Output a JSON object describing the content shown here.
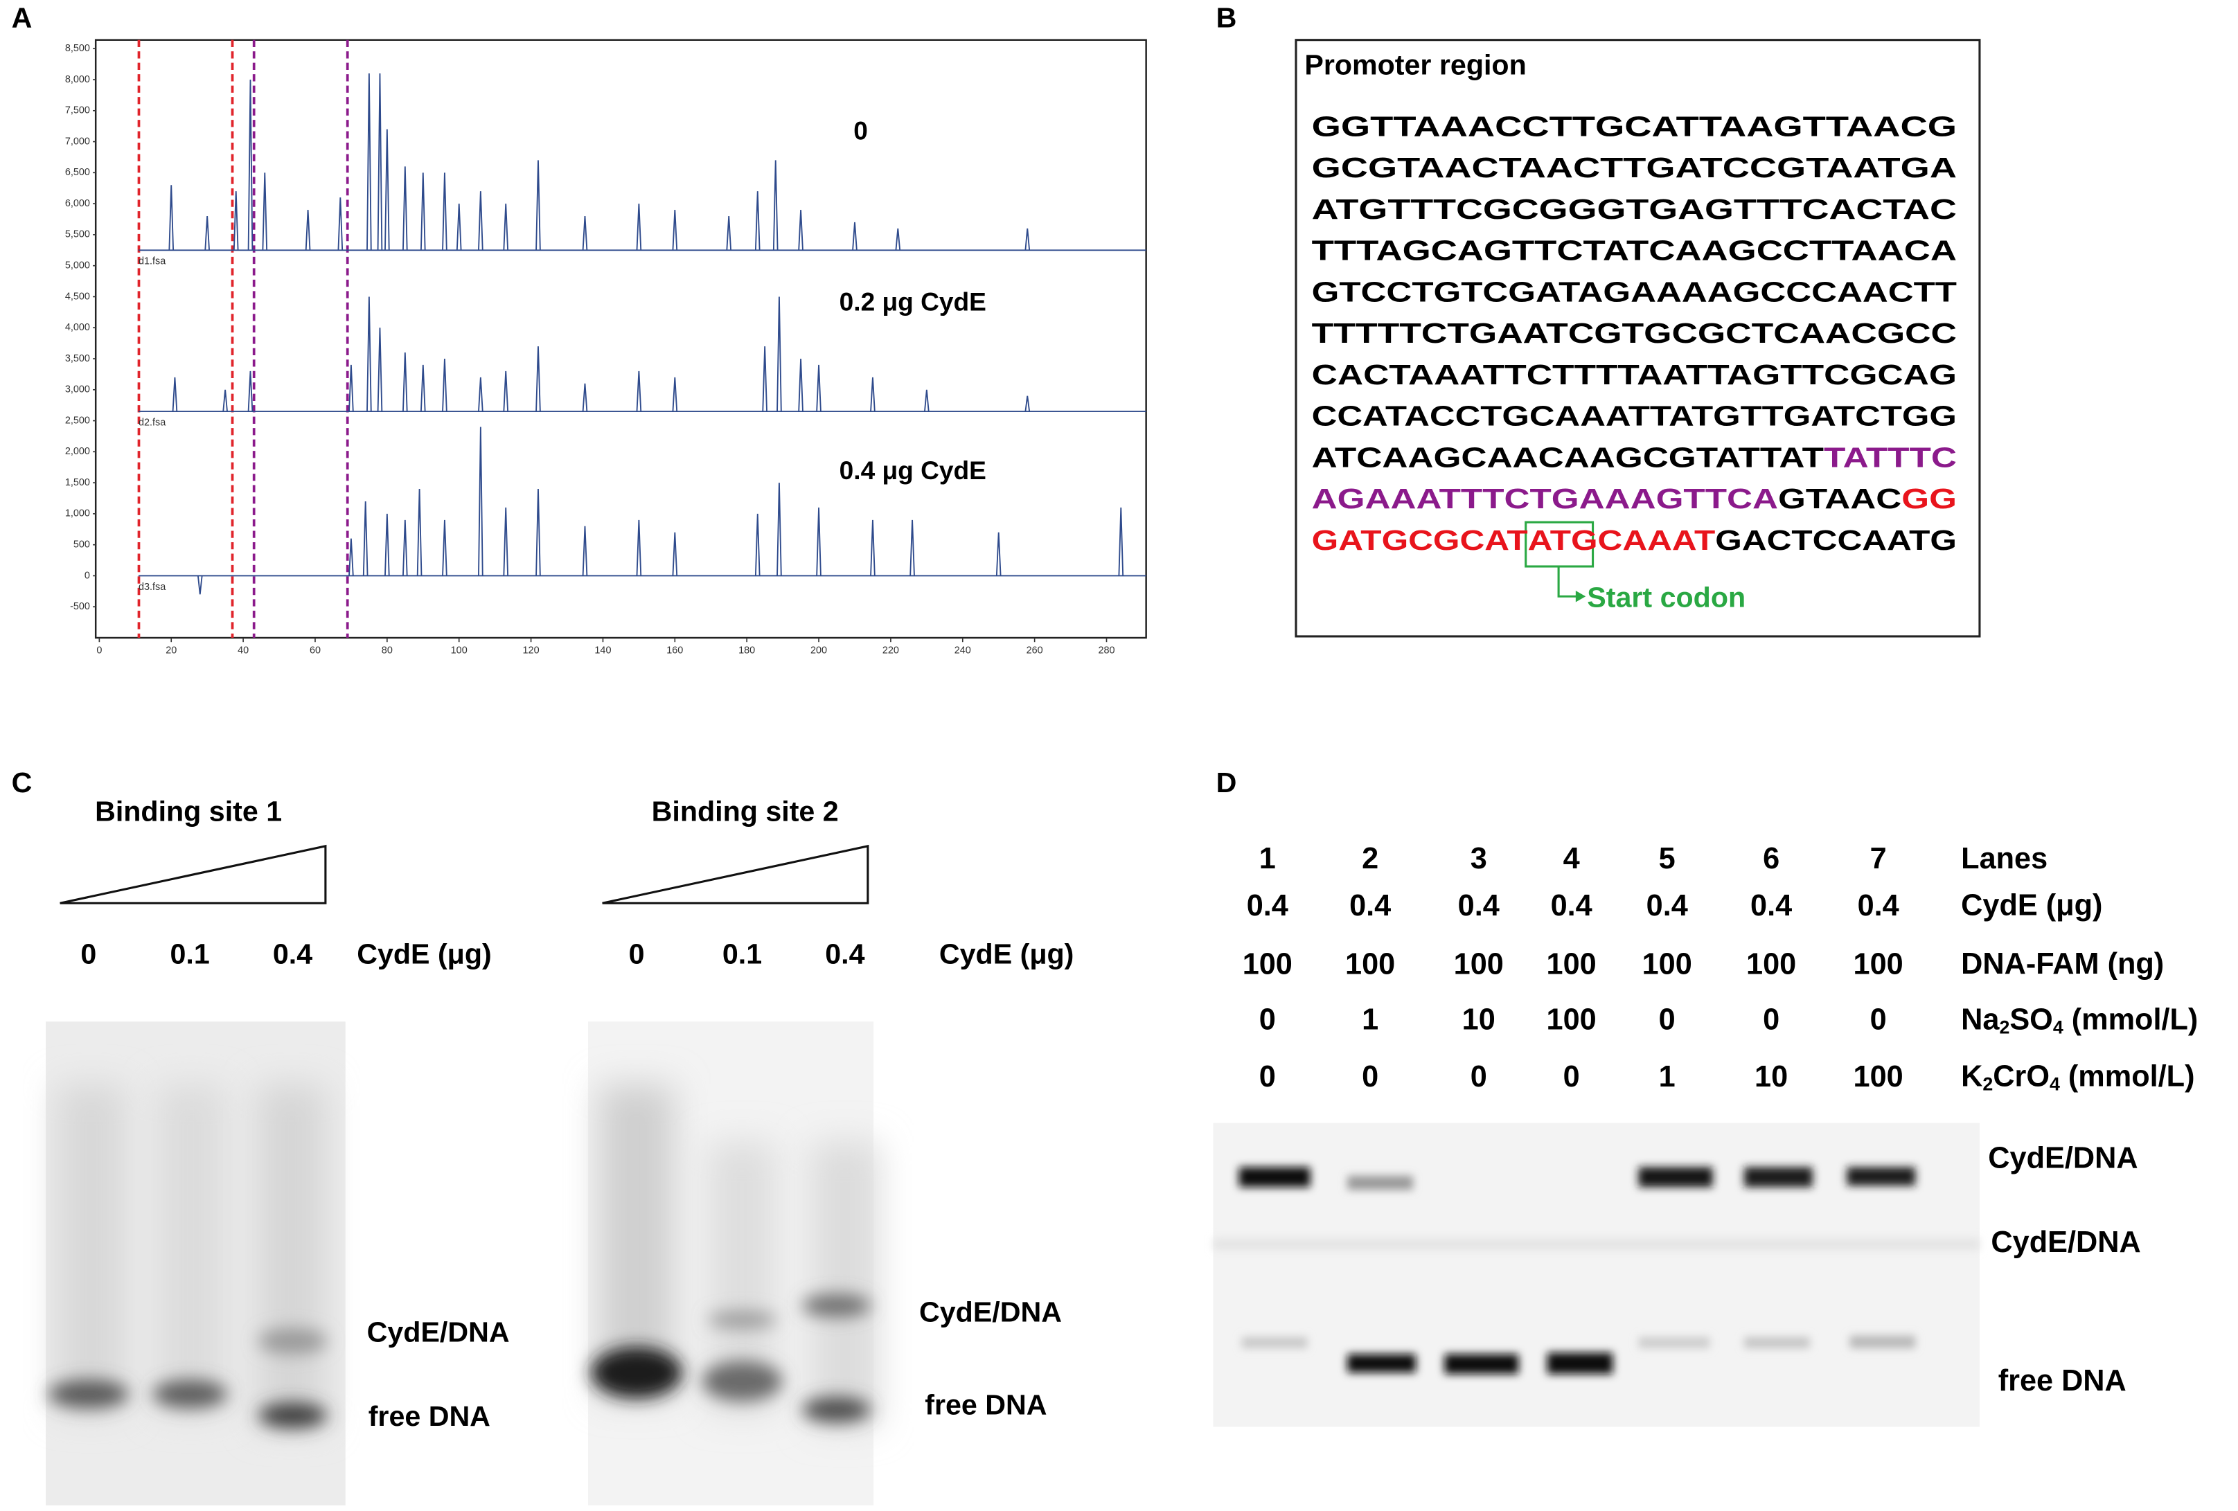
{
  "panel_labels": [
    "A",
    "B",
    "C",
    "D"
  ],
  "chart_data": {
    "type": "trace",
    "xlim": [
      -1,
      291
    ],
    "ylim": [
      -1000,
      8640
    ],
    "xticks": [
      0,
      20,
      40,
      60,
      80,
      100,
      120,
      140,
      160,
      180,
      200,
      220,
      240,
      260,
      280
    ],
    "yticks": [
      {
        "value": 8500,
        "label": "8,500"
      },
      {
        "value": 8000,
        "label": "8,000"
      },
      {
        "value": 7500,
        "label": "7,500"
      },
      {
        "value": 7000,
        "label": "7,000"
      },
      {
        "value": 6500,
        "label": "6,500"
      },
      {
        "value": 6000,
        "label": "6,000"
      },
      {
        "value": 5500,
        "label": "5,500"
      },
      {
        "value": 5000,
        "label": "5,000"
      },
      {
        "value": 4500,
        "label": "4,500"
      },
      {
        "value": 4000,
        "label": "4,000"
      },
      {
        "value": 3500,
        "label": "3,500"
      },
      {
        "value": 3000,
        "label": "3,000"
      },
      {
        "value": 2500,
        "label": "2,500"
      },
      {
        "value": 2000,
        "label": "2,000"
      },
      {
        "value": 1500,
        "label": "1,500"
      },
      {
        "value": 1000,
        "label": "1,000"
      },
      500,
      0,
      -500
    ],
    "markers": [
      {
        "x": 11,
        "color": "#e0242b"
      },
      {
        "x": 37,
        "color": "#e0242b"
      },
      {
        "x": 43,
        "color": "#8b1a8b"
      },
      {
        "x": 69,
        "color": "#8b1a8b"
      }
    ],
    "series": [
      {
        "name": "0",
        "file": "d1.fsa",
        "color": "#2e4a8c",
        "baseline": 5250,
        "peaks": [
          [
            20,
            6300
          ],
          [
            30,
            5800
          ],
          [
            38,
            6200
          ],
          [
            42,
            8000
          ],
          [
            46,
            6500
          ],
          [
            58,
            5900
          ],
          [
            67,
            6100
          ],
          [
            75,
            8100
          ],
          [
            78,
            8100
          ],
          [
            80,
            7200
          ],
          [
            85,
            6600
          ],
          [
            90,
            6500
          ],
          [
            96,
            6500
          ],
          [
            100,
            6000
          ],
          [
            106,
            6200
          ],
          [
            113,
            6000
          ],
          [
            122,
            6700
          ],
          [
            135,
            5800
          ],
          [
            150,
            6000
          ],
          [
            160,
            5900
          ],
          [
            175,
            5800
          ],
          [
            183,
            6200
          ],
          [
            188,
            6700
          ],
          [
            195,
            5900
          ],
          [
            210,
            5700
          ],
          [
            222,
            5600
          ],
          [
            258,
            5600
          ]
        ]
      },
      {
        "name": "0.2 μg CydE",
        "file": "d2.fsa",
        "color": "#2e4a8c",
        "baseline": 2650,
        "peaks": [
          [
            21,
            3200
          ],
          [
            35,
            3000
          ],
          [
            42,
            3300
          ],
          [
            70,
            3400
          ],
          [
            75,
            4500
          ],
          [
            78,
            4000
          ],
          [
            85,
            3600
          ],
          [
            90,
            3400
          ],
          [
            96,
            3500
          ],
          [
            106,
            3200
          ],
          [
            113,
            3300
          ],
          [
            122,
            3700
          ],
          [
            135,
            3100
          ],
          [
            150,
            3300
          ],
          [
            160,
            3200
          ],
          [
            185,
            3700
          ],
          [
            189,
            4500
          ],
          [
            195,
            3500
          ],
          [
            200,
            3400
          ],
          [
            215,
            3200
          ],
          [
            230,
            3000
          ],
          [
            258,
            2900
          ]
        ]
      },
      {
        "name": "0.4 μg CydE",
        "file": "d3.fsa",
        "color": "#2e4a8c",
        "baseline": 0,
        "peaks": [
          [
            28,
            -300
          ],
          [
            70,
            600
          ],
          [
            74,
            1200
          ],
          [
            80,
            1000
          ],
          [
            85,
            900
          ],
          [
            89,
            1400
          ],
          [
            96,
            900
          ],
          [
            106,
            2400
          ],
          [
            113,
            1100
          ],
          [
            122,
            1400
          ],
          [
            135,
            800
          ],
          [
            150,
            900
          ],
          [
            160,
            700
          ],
          [
            183,
            1000
          ],
          [
            189,
            1500
          ],
          [
            200,
            1100
          ],
          [
            215,
            900
          ],
          [
            226,
            900
          ],
          [
            250,
            700
          ],
          [
            284,
            1100
          ]
        ]
      }
    ]
  },
  "panel_b": {
    "title": "Promoter region",
    "lines": [
      [
        {
          "text": "GGTTAAACCTTGCATTAAGTTAACG",
          "color": "#000000"
        }
      ],
      [
        {
          "text": "GCGTAACTAACTTGATCCGTAATGA",
          "color": "#000000"
        }
      ],
      [
        {
          "text": "ATGTTTCGCGGGTGAGTTTCACTAC",
          "color": "#000000"
        }
      ],
      [
        {
          "text": "TTTAGCAGTTCTATCAAGCCTTAACA",
          "color": "#000000"
        }
      ],
      [
        {
          "text": "GTCCTGTCGATAGAAAAGCCCAACTT",
          "color": "#000000"
        }
      ],
      [
        {
          "text": "TTTTTCTGAATCGTGCGCTCAACGCC",
          "color": "#000000"
        }
      ],
      [
        {
          "text": "CACTAAATTCTTTTAATTAGTTCGCAG",
          "color": "#000000"
        }
      ],
      [
        {
          "text": "CCATACCTGCAAATTATGTTGATCTGG",
          "color": "#000000"
        }
      ],
      [
        {
          "text": "ATCAAGCAACAAGCGTATTAT",
          "color": "#000000"
        },
        {
          "text": "TATTTC",
          "color": "#8b1a8b"
        }
      ],
      [
        {
          "text": "AGAAATTTCTGAAAGTTCA",
          "color": "#8b1a8b"
        },
        {
          "text": "GTAAC",
          "color": "#000000"
        },
        {
          "text": "GG",
          "color": "#e8141c"
        }
      ],
      [
        {
          "text": "GATGCGCAT",
          "color": "#e8141c"
        },
        {
          "text": "ATG",
          "color": "#e8141c"
        },
        {
          "text": "CAAAT",
          "color": "#e8141c"
        },
        {
          "text": "GACTCCAATG",
          "color": "#000000"
        }
      ]
    ],
    "start_codon": "Start codon"
  },
  "panel_c": {
    "gels": [
      {
        "title": "Binding site 1",
        "doses": [
          0,
          0.1,
          0.4
        ],
        "dose_label": "CydE (μg)",
        "band_labels": [
          "CydE/DNA",
          "free DNA"
        ]
      },
      {
        "title": "Binding site 2",
        "doses": [
          0,
          0.1,
          0.4
        ],
        "dose_label": "CydE (μg)",
        "band_labels": [
          "CydE/DNA",
          "free DNA"
        ]
      }
    ]
  },
  "panel_d": {
    "lanes_label": "Lanes",
    "lanes": [
      1,
      2,
      3,
      4,
      5,
      6,
      7
    ],
    "rows": [
      {
        "label_parts": [
          {
            "text": "CydE (μg)"
          }
        ],
        "values": [
          0.4,
          0.4,
          0.4,
          0.4,
          0.4,
          0.4,
          0.4
        ]
      },
      {
        "label_parts": [
          {
            "text": "DNA-FAM (ng)"
          }
        ],
        "values": [
          100,
          100,
          100,
          100,
          100,
          100,
          100
        ]
      },
      {
        "label_parts": [
          {
            "text": "Na"
          },
          {
            "text": "2",
            "sub": true
          },
          {
            "text": "SO"
          },
          {
            "text": "4",
            "sub": true
          },
          {
            "text": " (mmol/L)"
          }
        ],
        "values": [
          0,
          1,
          10,
          100,
          0,
          0,
          0
        ]
      },
      {
        "label_parts": [
          {
            "text": "K"
          },
          {
            "text": "2",
            "sub": true
          },
          {
            "text": "CrO"
          },
          {
            "text": "4",
            "sub": true
          },
          {
            "text": " (mmol/L)"
          }
        ],
        "values": [
          0,
          0,
          0,
          0,
          1,
          10,
          100
        ]
      }
    ],
    "band_labels": [
      "CydE/DNA",
      "CydE/DNA",
      "free DNA"
    ]
  }
}
